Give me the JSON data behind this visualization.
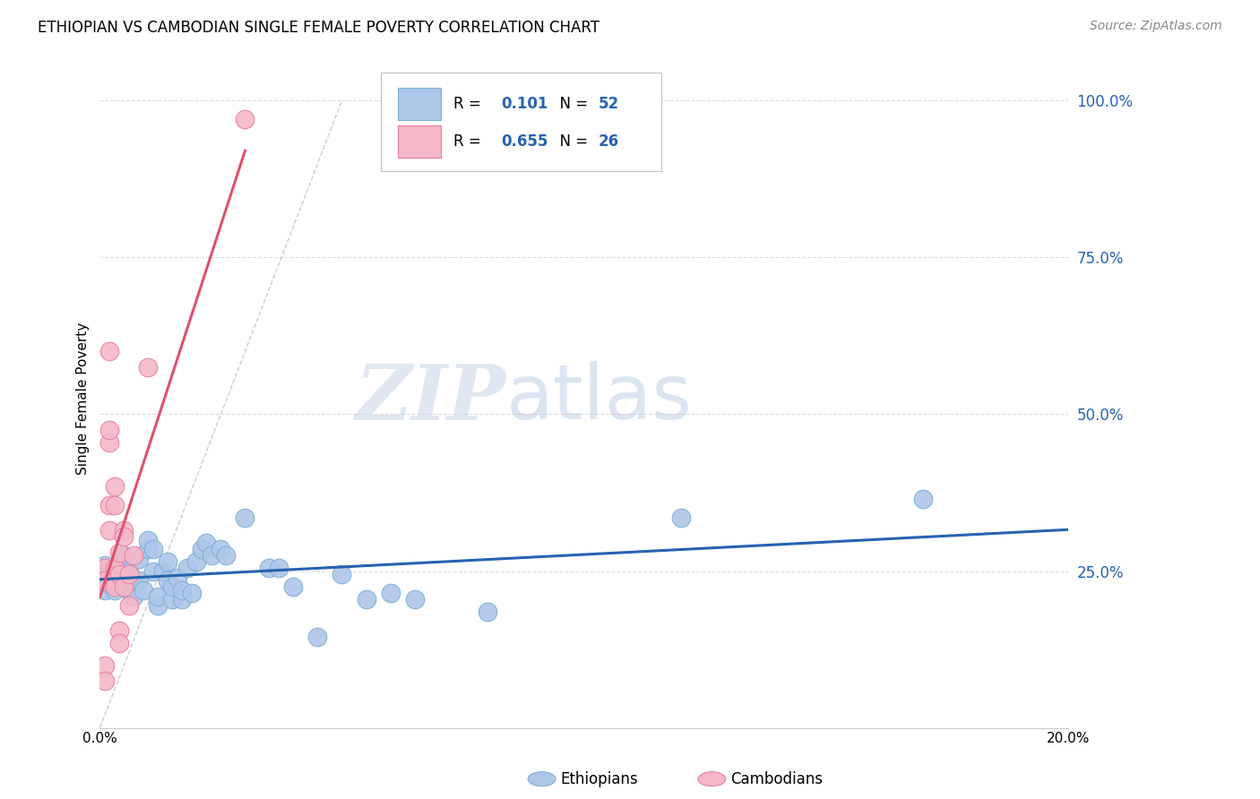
{
  "title": "ETHIOPIAN VS CAMBODIAN SINGLE FEMALE POVERTY CORRELATION CHART",
  "source": "Source: ZipAtlas.com",
  "ylabel": "Single Female Poverty",
  "R_eth": 0.101,
  "N_eth": 52,
  "R_cam": 0.655,
  "N_cam": 26,
  "eth_color": "#aec6e8",
  "cam_color": "#f4b8c8",
  "eth_edge": "#7bafd4",
  "cam_edge": "#e87fa0",
  "trend_eth_color": "#2563b0",
  "trend_cam_color": "#e05070",
  "yaxis_labels": [
    "100.0%",
    "75.0%",
    "50.0%",
    "25.0%"
  ],
  "yaxis_values": [
    1.0,
    0.75,
    0.5,
    0.25
  ],
  "xlim": [
    0.0,
    0.2
  ],
  "ylim": [
    0.0,
    1.05
  ],
  "eth_scatter": [
    [
      0.001,
      0.26
    ],
    [
      0.001,
      0.24
    ],
    [
      0.001,
      0.22
    ],
    [
      0.002,
      0.25
    ],
    [
      0.002,
      0.23
    ],
    [
      0.003,
      0.24
    ],
    [
      0.003,
      0.22
    ],
    [
      0.004,
      0.26
    ],
    [
      0.004,
      0.23
    ],
    [
      0.005,
      0.275
    ],
    [
      0.005,
      0.24
    ],
    [
      0.006,
      0.25
    ],
    [
      0.006,
      0.22
    ],
    [
      0.007,
      0.21
    ],
    [
      0.007,
      0.235
    ],
    [
      0.008,
      0.27
    ],
    [
      0.008,
      0.235
    ],
    [
      0.009,
      0.22
    ],
    [
      0.01,
      0.285
    ],
    [
      0.01,
      0.3
    ],
    [
      0.011,
      0.25
    ],
    [
      0.011,
      0.285
    ],
    [
      0.012,
      0.195
    ],
    [
      0.012,
      0.21
    ],
    [
      0.013,
      0.25
    ],
    [
      0.014,
      0.265
    ],
    [
      0.014,
      0.235
    ],
    [
      0.015,
      0.205
    ],
    [
      0.015,
      0.225
    ],
    [
      0.016,
      0.24
    ],
    [
      0.017,
      0.205
    ],
    [
      0.017,
      0.22
    ],
    [
      0.018,
      0.255
    ],
    [
      0.019,
      0.215
    ],
    [
      0.02,
      0.265
    ],
    [
      0.021,
      0.285
    ],
    [
      0.022,
      0.295
    ],
    [
      0.023,
      0.275
    ],
    [
      0.025,
      0.285
    ],
    [
      0.026,
      0.275
    ],
    [
      0.03,
      0.335
    ],
    [
      0.035,
      0.255
    ],
    [
      0.037,
      0.255
    ],
    [
      0.04,
      0.225
    ],
    [
      0.045,
      0.145
    ],
    [
      0.05,
      0.245
    ],
    [
      0.055,
      0.205
    ],
    [
      0.06,
      0.215
    ],
    [
      0.065,
      0.205
    ],
    [
      0.08,
      0.185
    ],
    [
      0.12,
      0.335
    ],
    [
      0.17,
      0.365
    ]
  ],
  "cam_scatter": [
    [
      0.001,
      0.255
    ],
    [
      0.001,
      0.235
    ],
    [
      0.001,
      0.1
    ],
    [
      0.001,
      0.075
    ],
    [
      0.002,
      0.6
    ],
    [
      0.002,
      0.355
    ],
    [
      0.002,
      0.315
    ],
    [
      0.002,
      0.455
    ],
    [
      0.002,
      0.475
    ],
    [
      0.003,
      0.385
    ],
    [
      0.003,
      0.355
    ],
    [
      0.003,
      0.255
    ],
    [
      0.003,
      0.235
    ],
    [
      0.003,
      0.225
    ],
    [
      0.004,
      0.28
    ],
    [
      0.004,
      0.245
    ],
    [
      0.004,
      0.155
    ],
    [
      0.004,
      0.135
    ],
    [
      0.005,
      0.315
    ],
    [
      0.005,
      0.305
    ],
    [
      0.005,
      0.225
    ],
    [
      0.006,
      0.245
    ],
    [
      0.006,
      0.195
    ],
    [
      0.007,
      0.275
    ],
    [
      0.03,
      0.97
    ],
    [
      0.01,
      0.575
    ]
  ]
}
